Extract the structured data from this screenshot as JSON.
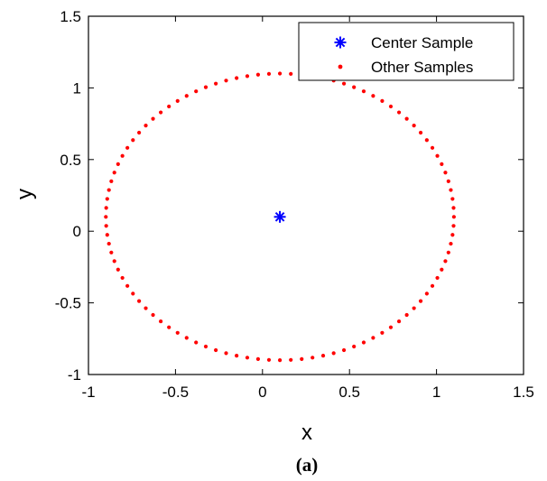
{
  "chart_data": {
    "type": "scatter",
    "title": "",
    "xlabel": "x",
    "ylabel": "y",
    "xlim": [
      -1,
      1.5
    ],
    "ylim": [
      -1,
      1.5
    ],
    "xticks": [
      "-1",
      "-0.5",
      "0",
      "0.5",
      "1",
      "1.5"
    ],
    "yticks": [
      "-1",
      "-0.5",
      "0",
      "0.5",
      "1",
      "1.5"
    ],
    "grid": false,
    "legend_position": "top-right",
    "series": [
      {
        "name": "Center Sample",
        "marker": "asterisk",
        "color": "#0000ff",
        "points": [
          [
            0.1,
            0.1
          ]
        ]
      },
      {
        "name": "Other Samples",
        "marker": "dot",
        "color": "#ff0000",
        "ring": {
          "center": [
            0.1,
            0.1
          ],
          "radius": 1.0,
          "count": 100
        }
      }
    ]
  },
  "caption": "(a)"
}
